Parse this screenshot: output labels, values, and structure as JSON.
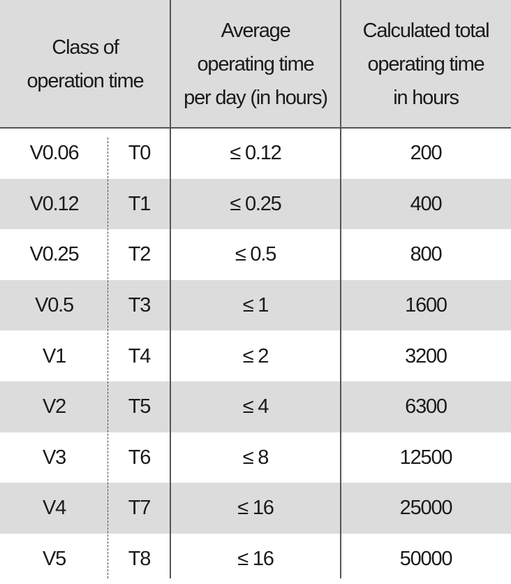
{
  "table": {
    "header": [
      [
        "Class of",
        "operation time"
      ],
      [
        "Average",
        "operating time",
        "per day (in hours)"
      ],
      [
        "Calculated total",
        "operating time",
        "in hours"
      ]
    ],
    "rows": [
      [
        "V0.06",
        "T0",
        "≤ 0.12",
        "200"
      ],
      [
        "V0.12",
        "T1",
        "≤ 0.25",
        "400"
      ],
      [
        "V0.25",
        "T2",
        "≤ 0.5",
        "800"
      ],
      [
        "V0.5",
        "T3",
        "≤ 1",
        "1600"
      ],
      [
        "V1",
        "T4",
        "≤ 2",
        "3200"
      ],
      [
        "V2",
        "T5",
        "≤ 4",
        "6300"
      ],
      [
        "V3",
        "T6",
        "≤ 8",
        "12500"
      ],
      [
        "V4",
        "T7",
        "≤ 16",
        "25000"
      ],
      [
        "V5",
        "T8",
        "≤ 16",
        "50000"
      ]
    ]
  }
}
